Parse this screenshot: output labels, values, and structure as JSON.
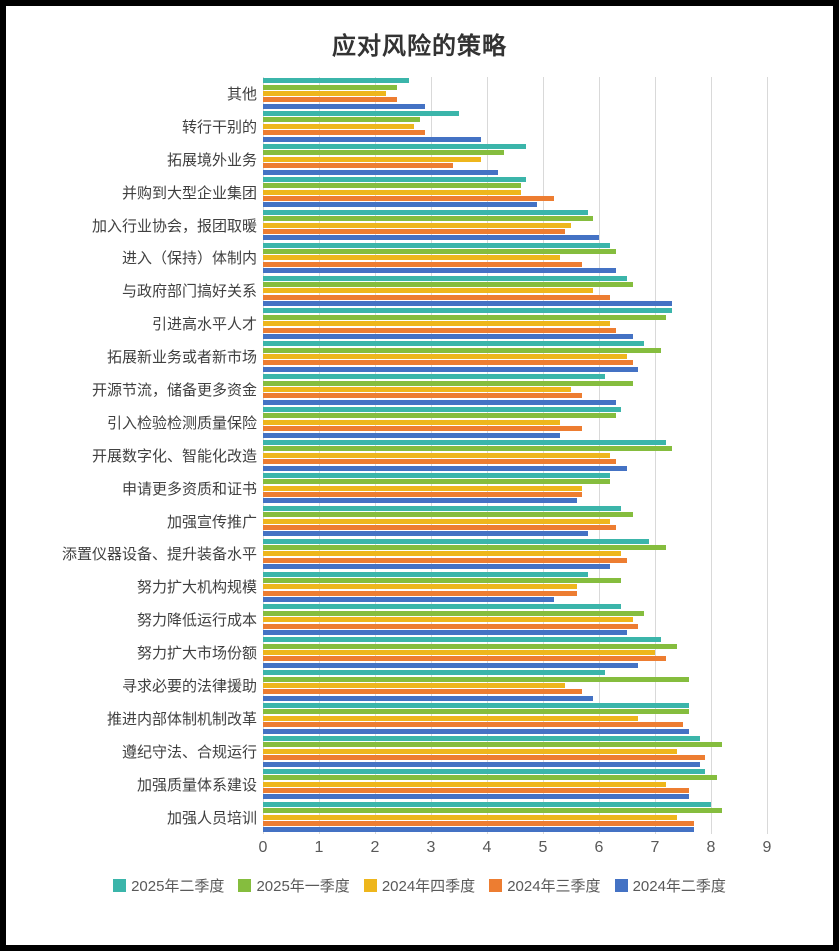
{
  "title": "应对风险的策略",
  "colors": {
    "series_teal": "#3bb5aa",
    "series_green": "#85bd3e",
    "series_yellow": "#eeb61c",
    "series_orange": "#ed7d31",
    "series_blue": "#4472c4",
    "gridline": "#d9d9d9",
    "title_text": "#333333",
    "axis_text": "#595959",
    "category_text": "#404040",
    "frame_border": "#000000"
  },
  "chart_data": {
    "type": "bar",
    "orientation": "horizontal",
    "title": "应对风险的策略",
    "xlabel": "",
    "ylabel": "",
    "xlim": [
      0,
      9
    ],
    "x_ticks": [
      0,
      1,
      2,
      3,
      4,
      5,
      6,
      7,
      8,
      9
    ],
    "grid": true,
    "legend_position": "bottom",
    "categories": [
      "其他",
      "转行干别的",
      "拓展境外业务",
      "并购到大型企业集团",
      "加入行业协会，报团取暖",
      "进入（保持）体制内",
      "与政府部门搞好关系",
      "引进高水平人才",
      "拓展新业务或者新市场",
      "开源节流，储备更多资金",
      "引入检验检测质量保险",
      "开展数字化、智能化改造",
      "申请更多资质和证书",
      "加强宣传推广",
      "添置仪器设备、提升装备水平",
      "努力扩大机构规模",
      "努力降低运行成本",
      "努力扩大市场份额",
      "寻求必要的法律援助",
      "推进内部体制机制改革",
      "遵纪守法、合规运行",
      "加强质量体系建设",
      "加强人员培训"
    ],
    "series": [
      {
        "name": "2025年二季度",
        "color": "#3bb5aa",
        "values": [
          2.6,
          3.5,
          4.7,
          4.7,
          5.8,
          6.2,
          6.5,
          7.3,
          6.8,
          6.1,
          6.4,
          7.2,
          6.2,
          6.4,
          6.9,
          5.8,
          6.4,
          7.1,
          6.1,
          7.6,
          7.8,
          7.9,
          8.0
        ]
      },
      {
        "name": "2025年一季度",
        "color": "#85bd3e",
        "values": [
          2.4,
          2.8,
          4.3,
          4.6,
          5.9,
          6.3,
          6.6,
          7.2,
          7.1,
          6.6,
          6.3,
          7.3,
          6.2,
          6.6,
          7.2,
          6.4,
          6.8,
          7.4,
          7.6,
          7.6,
          8.2,
          8.1,
          8.2
        ]
      },
      {
        "name": "2024年四季度",
        "color": "#eeb61c",
        "values": [
          2.2,
          2.7,
          3.9,
          4.6,
          5.5,
          5.3,
          5.9,
          6.2,
          6.5,
          5.5,
          5.3,
          6.2,
          5.7,
          6.2,
          6.4,
          5.6,
          6.6,
          7.0,
          5.4,
          6.7,
          7.4,
          7.2,
          7.4
        ]
      },
      {
        "name": "2024年三季度",
        "color": "#ed7d31",
        "values": [
          2.4,
          2.9,
          3.4,
          5.2,
          5.4,
          5.7,
          6.2,
          6.3,
          6.6,
          5.7,
          5.7,
          6.3,
          5.7,
          6.3,
          6.5,
          5.6,
          6.7,
          7.2,
          5.7,
          7.5,
          7.9,
          7.6,
          7.7
        ]
      },
      {
        "name": "2024年二季度",
        "color": "#4472c4",
        "values": [
          2.9,
          3.9,
          4.2,
          4.9,
          6.0,
          6.3,
          7.3,
          6.6,
          6.7,
          6.3,
          5.3,
          6.5,
          5.6,
          5.8,
          6.2,
          5.2,
          6.5,
          6.7,
          5.9,
          7.6,
          7.8,
          7.6,
          7.7
        ]
      }
    ]
  }
}
